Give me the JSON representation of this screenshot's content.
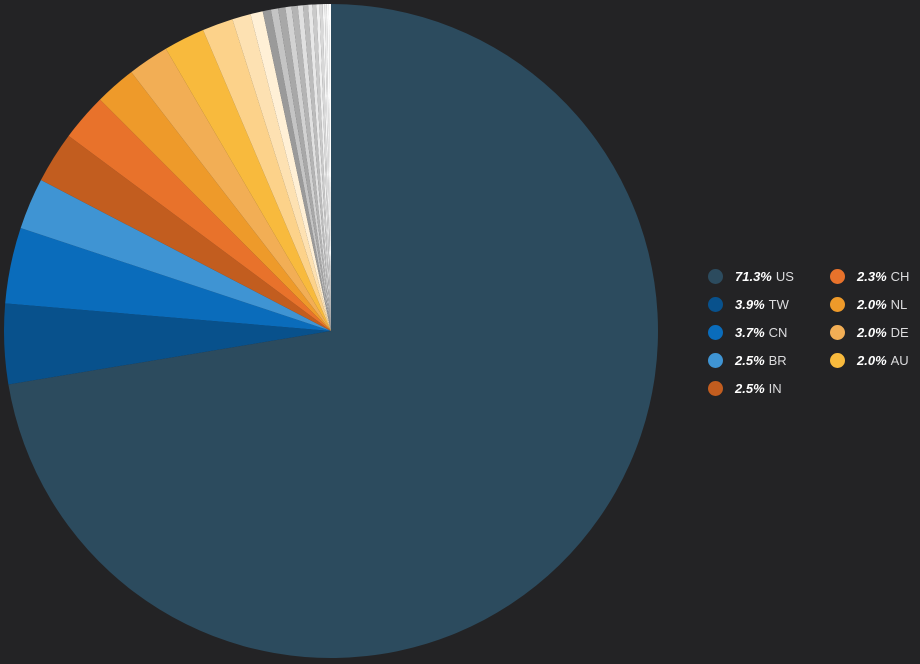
{
  "chart_data": {
    "type": "pie",
    "start_angle_deg": 0,
    "direction": "clockwise",
    "slices": [
      {
        "label": "US",
        "value": 71.3,
        "color": "#2c4b5e",
        "legend": true
      },
      {
        "label": "TW",
        "value": 3.9,
        "color": "#08518c",
        "legend": true
      },
      {
        "label": "CN",
        "value": 3.7,
        "color": "#0a6cbb",
        "legend": true
      },
      {
        "label": "BR",
        "value": 2.5,
        "color": "#3f94d3",
        "legend": true
      },
      {
        "label": "IN",
        "value": 2.5,
        "color": "#c25d1f",
        "legend": true
      },
      {
        "label": "CH",
        "value": 2.3,
        "color": "#e8722b",
        "legend": true
      },
      {
        "label": "NL",
        "value": 2.0,
        "color": "#ee9a2a",
        "legend": true
      },
      {
        "label": "DE",
        "value": 2.0,
        "color": "#f2ae55",
        "legend": true
      },
      {
        "label": "AU",
        "value": 2.0,
        "color": "#f8ba3d",
        "legend": true
      },
      {
        "label": "",
        "value": 1.5,
        "color": "#fcd28a",
        "legend": false
      },
      {
        "label": "",
        "value": 0.9,
        "color": "#fde1b2",
        "legend": false
      },
      {
        "label": "",
        "value": 0.6,
        "color": "#fff0d6",
        "legend": false
      },
      {
        "label": "",
        "value": 0.4,
        "color": "#9a9a9a",
        "legend": false
      },
      {
        "label": "",
        "value": 0.35,
        "color": "#c4c4c4",
        "legend": false
      },
      {
        "label": "",
        "value": 0.35,
        "color": "#a8a8a8",
        "legend": false
      },
      {
        "label": "",
        "value": 0.3,
        "color": "#d2d2d2",
        "legend": false
      },
      {
        "label": "",
        "value": 0.3,
        "color": "#b4b4b4",
        "legend": false
      },
      {
        "label": "",
        "value": 0.25,
        "color": "#e0e0e0",
        "legend": false
      },
      {
        "label": "",
        "value": 0.25,
        "color": "#bcbcbc",
        "legend": false
      },
      {
        "label": "",
        "value": 0.2,
        "color": "#e8e8e8",
        "legend": false
      },
      {
        "label": "",
        "value": 0.2,
        "color": "#cacaca",
        "legend": false
      },
      {
        "label": "",
        "value": 0.15,
        "color": "#f0f0f0",
        "legend": false
      },
      {
        "label": "",
        "value": 0.15,
        "color": "#d8d8d8",
        "legend": false
      },
      {
        "label": "",
        "value": 0.1,
        "color": "#f6f6f6",
        "legend": false
      },
      {
        "label": "",
        "value": 0.1,
        "color": "#ececec",
        "legend": false
      },
      {
        "label": "",
        "value": 0.1,
        "color": "#fafafa",
        "legend": false
      },
      {
        "label": "",
        "value": 0.1,
        "color": "#ffffff",
        "legend": false
      }
    ],
    "legend": {
      "placement": "right",
      "items": [
        {
          "value_text": "71.3%",
          "label": "US",
          "color": "#2c4b5e"
        },
        {
          "value_text": "3.9%",
          "label": "TW",
          "color": "#08518c"
        },
        {
          "value_text": "3.7%",
          "label": "CN",
          "color": "#0a6cbb"
        },
        {
          "value_text": "2.5%",
          "label": "BR",
          "color": "#3f94d3"
        },
        {
          "value_text": "2.5%",
          "label": "IN",
          "color": "#c25d1f"
        },
        {
          "value_text": "2.3%",
          "label": "CH",
          "color": "#e8722b"
        },
        {
          "value_text": "2.0%",
          "label": "NL",
          "color": "#ee9a2a"
        },
        {
          "value_text": "2.0%",
          "label": "DE",
          "color": "#f2ae55"
        },
        {
          "value_text": "2.0%",
          "label": "AU",
          "color": "#f8ba3d"
        }
      ]
    }
  }
}
